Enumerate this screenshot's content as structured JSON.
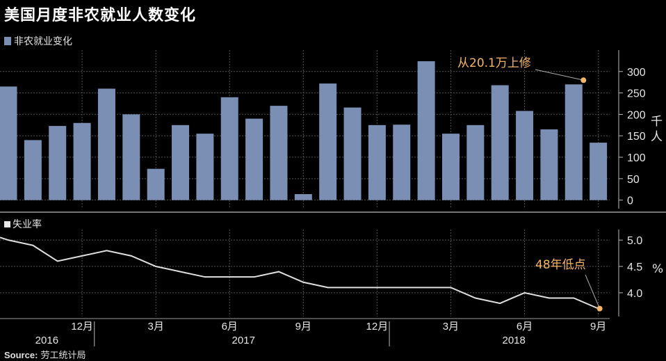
{
  "title": "美国月度非农就业人数变化",
  "source_label": "Source:",
  "source_text": "劳工统计局",
  "colors": {
    "bar": "#7a8fb3",
    "line": "#e0e0e0",
    "annotation": "#f5b66b",
    "background": "#000000",
    "grid": "#555555"
  },
  "chart_data": [
    {
      "type": "bar",
      "legend": "非农就业变化",
      "ylabel": "千人",
      "ylim": [
        -20,
        350
      ],
      "yticks": [
        0,
        50,
        100,
        150,
        200,
        250,
        300
      ],
      "values": [
        265,
        140,
        173,
        180,
        260,
        200,
        73,
        175,
        155,
        240,
        190,
        220,
        14,
        272,
        216,
        175,
        176,
        324,
        155,
        175,
        268,
        208,
        165,
        270,
        134
      ],
      "annotation": {
        "text": "从20.1万上修",
        "index": 23,
        "value": 270
      }
    },
    {
      "type": "line",
      "legend": "失业率",
      "ylabel": "%",
      "ylim": [
        3.55,
        5.2
      ],
      "yticks": [
        5.0,
        4.5,
        4.0
      ],
      "ytick_labels": [
        "5.0",
        "4.5",
        "4.0"
      ],
      "values": [
        5.0,
        4.9,
        4.6,
        4.7,
        4.8,
        4.7,
        4.5,
        4.4,
        4.3,
        4.3,
        4.3,
        4.4,
        4.2,
        4.1,
        4.1,
        4.1,
        4.1,
        4.1,
        4.1,
        3.9,
        3.8,
        4.0,
        3.9,
        3.9,
        3.7
      ],
      "annotation": {
        "text": "48年低点",
        "index": 24,
        "value": 3.7
      }
    }
  ],
  "x_axis": {
    "month_labels": [
      {
        "index": 3,
        "label": "12月"
      },
      {
        "index": 6,
        "label": "3月"
      },
      {
        "index": 9,
        "label": "6月"
      },
      {
        "index": 12,
        "label": "9月"
      },
      {
        "index": 15,
        "label": "12月"
      },
      {
        "index": 18,
        "label": "3月"
      },
      {
        "index": 21,
        "label": "6月"
      },
      {
        "index": 24,
        "label": "9月"
      }
    ],
    "year_labels": [
      {
        "index": 1,
        "label": "2016"
      },
      {
        "index": 9,
        "label": "2017"
      },
      {
        "index": 20,
        "label": "2018"
      }
    ],
    "year_dividers": [
      3.5,
      15.5
    ]
  }
}
